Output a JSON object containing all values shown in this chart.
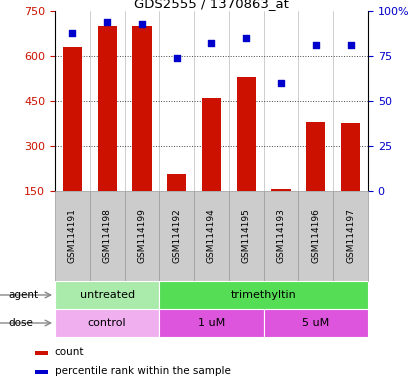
{
  "title": "GDS2555 / 1370863_at",
  "samples": [
    "GSM114191",
    "GSM114198",
    "GSM114199",
    "GSM114192",
    "GSM114194",
    "GSM114195",
    "GSM114193",
    "GSM114196",
    "GSM114197"
  ],
  "counts": [
    630,
    700,
    700,
    205,
    460,
    530,
    155,
    380,
    375
  ],
  "percentile_ranks": [
    88,
    94,
    93,
    74,
    82,
    85,
    60,
    81,
    81
  ],
  "ylim_left": [
    150,
    750
  ],
  "ylim_right": [
    0,
    100
  ],
  "yticks_left": [
    150,
    300,
    450,
    600,
    750
  ],
  "yticks_right": [
    0,
    25,
    50,
    75,
    100
  ],
  "ytick_right_labels": [
    "0",
    "25",
    "50",
    "75",
    "100%"
  ],
  "bar_color": "#cc1100",
  "dot_color": "#0000cc",
  "grid_color": "#444444",
  "grid_lines": [
    300,
    450,
    600
  ],
  "agent_groups": [
    {
      "label": "untreated",
      "start": 0,
      "end": 3,
      "color": "#aaeaaa"
    },
    {
      "label": "trimethyltin",
      "start": 3,
      "end": 9,
      "color": "#55dd55"
    }
  ],
  "dose_groups": [
    {
      "label": "control",
      "start": 0,
      "end": 3,
      "color": "#f0b0f0"
    },
    {
      "label": "1 uM",
      "start": 3,
      "end": 6,
      "color": "#dd66dd"
    },
    {
      "label": "5 uM",
      "start": 6,
      "end": 9,
      "color": "#dd66dd"
    }
  ],
  "sample_box_color": "#cccccc",
  "sample_box_edge": "#999999",
  "bar_width": 0.55,
  "agent_label": "agent",
  "dose_label": "dose",
  "count_legend": "count",
  "pct_legend": "percentile rank within the sample",
  "legend_bar_color": "#cc1100",
  "legend_dot_color": "#0000cc"
}
